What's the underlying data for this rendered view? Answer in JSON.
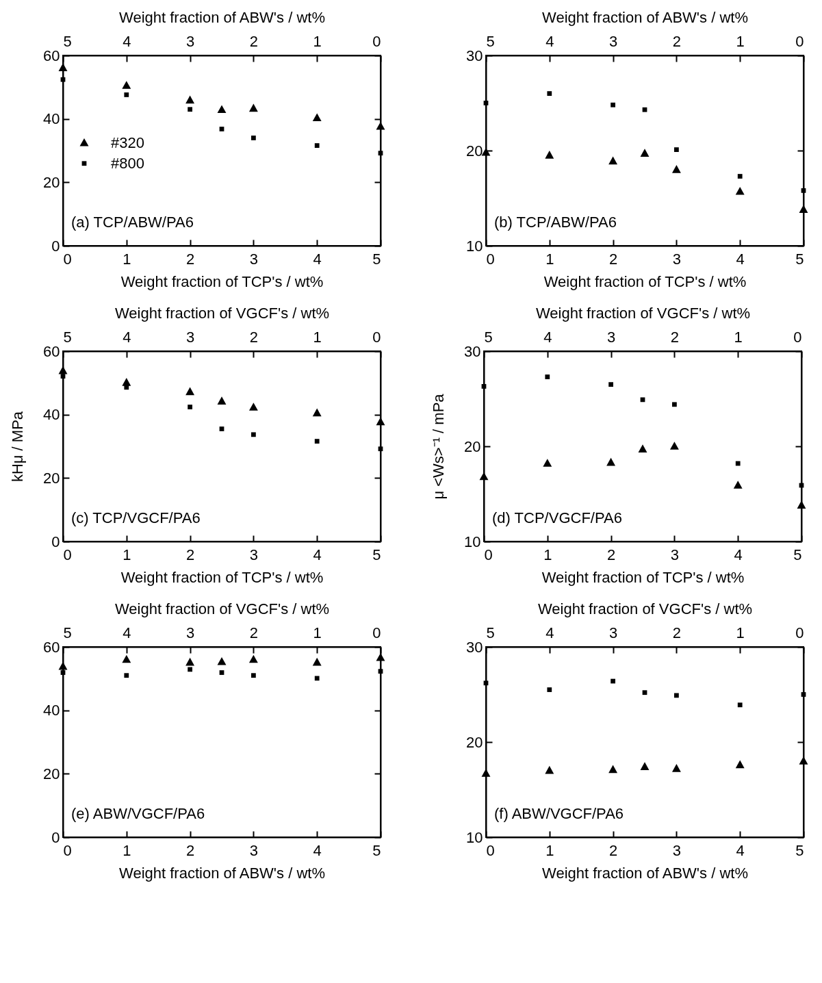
{
  "chart_data": [
    {
      "type": "scatter",
      "x": [
        0,
        1,
        2,
        2.5,
        3,
        4,
        5
      ],
      "xlim": [
        0,
        5
      ],
      "xticks": [
        0,
        1,
        2,
        3,
        4,
        5
      ],
      "x2lim": [
        5,
        0
      ],
      "x2ticks": [
        5,
        4,
        3,
        2,
        1,
        0
      ],
      "xlabel": "Weight fraction of TCP's / wt%",
      "x2label": "Weight fraction of ABW's / wt%",
      "ylim": [
        0,
        60
      ],
      "yticks": [
        0,
        20,
        40,
        60
      ],
      "legend": "left",
      "annotations": [
        "(a) TCP/ABW/PA6"
      ],
      "series": [
        {
          "name": "#320",
          "color": "#000000",
          "marker": "triangle",
          "values": [
            56.1,
            50.5,
            45.9,
            42.9,
            43.3,
            40.3,
            37.6
          ]
        },
        {
          "name": "#800",
          "color": "#000000",
          "marker": "square",
          "values": [
            52.4,
            47.6,
            43.0,
            36.8,
            34.0,
            31.6,
            29.2
          ]
        }
      ]
    },
    {
      "type": "scatter",
      "x": [
        0,
        1,
        2,
        2.5,
        3,
        4,
        5
      ],
      "xlim": [
        0,
        5
      ],
      "xticks": [
        0,
        1,
        2,
        3,
        4,
        5
      ],
      "x2lim": [
        5,
        0
      ],
      "x2ticks": [
        5,
        4,
        3,
        2,
        1,
        0
      ],
      "xlabel": "Weight fraction of TCP's / wt%",
      "x2label": "Weight fraction of ABW's / wt%",
      "ylim": [
        10,
        30
      ],
      "yticks": [
        10,
        20,
        30
      ],
      "annotations": [
        "(b) TCP/ABW/PA6"
      ],
      "series": [
        {
          "color": "#000000",
          "marker": "triangle",
          "values": [
            19.8,
            19.5,
            18.9,
            19.7,
            18.0,
            15.7,
            13.8
          ]
        },
        {
          "color": "#000000",
          "marker": "square",
          "values": [
            25.0,
            26.0,
            24.8,
            24.3,
            20.1,
            17.3,
            15.8
          ]
        }
      ]
    },
    {
      "type": "scatter",
      "x": [
        0,
        1,
        2,
        2.5,
        3,
        4,
        5
      ],
      "xlim": [
        0,
        5
      ],
      "xticks": [
        0,
        1,
        2,
        3,
        4,
        5
      ],
      "x2lim": [
        5,
        0
      ],
      "x2ticks": [
        5,
        4,
        3,
        2,
        1,
        0
      ],
      "xlabel": "Weight fraction of TCP's / wt%",
      "x2label": "Weight fraction of VGCF's / wt%",
      "ylabel": "kHμ / MPa",
      "ylim": [
        0,
        60
      ],
      "yticks": [
        0,
        20,
        40,
        60
      ],
      "annotations": [
        "(c) TCP/VGCF/PA6"
      ],
      "series": [
        {
          "color": "#000000",
          "marker": "triangle",
          "values": [
            53.8,
            50.1,
            47.2,
            44.2,
            42.3,
            40.5,
            37.7
          ]
        },
        {
          "color": "#000000",
          "marker": "square",
          "values": [
            52.1,
            48.6,
            42.4,
            35.5,
            33.7,
            31.6,
            29.2
          ]
        }
      ]
    },
    {
      "type": "scatter",
      "x": [
        0,
        1,
        2,
        2.5,
        3,
        4,
        5
      ],
      "xlim": [
        0,
        5
      ],
      "xticks": [
        0,
        1,
        2,
        3,
        4,
        5
      ],
      "x2lim": [
        5,
        0
      ],
      "x2ticks": [
        5,
        4,
        3,
        2,
        1,
        0
      ],
      "xlabel": "Weight fraction of TCP's / wt%",
      "x2label": "Weight fraction of VGCF's / wt%",
      "ylabel": "μ <Ws>⁻¹ / mPa",
      "ylim": [
        10,
        30
      ],
      "yticks": [
        10,
        20,
        30
      ],
      "annotations": [
        "(d) TCP/VGCF/PA6"
      ],
      "series": [
        {
          "color": "#000000",
          "marker": "triangle",
          "values": [
            16.8,
            18.2,
            18.3,
            19.7,
            20.0,
            15.9,
            13.8
          ]
        },
        {
          "color": "#000000",
          "marker": "square",
          "values": [
            26.3,
            27.3,
            26.5,
            24.9,
            24.4,
            18.2,
            15.9
          ]
        }
      ]
    },
    {
      "type": "scatter",
      "x": [
        0,
        1,
        2,
        2.5,
        3,
        4,
        5
      ],
      "xlim": [
        0,
        5
      ],
      "xticks": [
        0,
        1,
        2,
        3,
        4,
        5
      ],
      "x2lim": [
        5,
        0
      ],
      "x2ticks": [
        5,
        4,
        3,
        2,
        1,
        0
      ],
      "xlabel": "Weight fraction of ABW's / wt%",
      "x2label": "Weight fraction of VGCF's / wt%",
      "ylim": [
        0,
        60
      ],
      "yticks": [
        0,
        20,
        40,
        60
      ],
      "annotations": [
        "(e) ABW/VGCF/PA6"
      ],
      "series": [
        {
          "color": "#000000",
          "marker": "triangle",
          "values": [
            53.8,
            56.0,
            55.1,
            55.3,
            56.0,
            55.1,
            56.6
          ]
        },
        {
          "color": "#000000",
          "marker": "square",
          "values": [
            51.9,
            51.0,
            52.9,
            51.9,
            51.0,
            50.1,
            52.3
          ]
        }
      ]
    },
    {
      "type": "scatter",
      "x": [
        0,
        1,
        2,
        2.5,
        3,
        4,
        5
      ],
      "xlim": [
        0,
        5
      ],
      "xticks": [
        0,
        1,
        2,
        3,
        4,
        5
      ],
      "x2lim": [
        5,
        0
      ],
      "x2ticks": [
        5,
        4,
        3,
        2,
        1,
        0
      ],
      "xlabel": "Weight fraction of ABW's / wt%",
      "x2label": "Weight fraction of VGCF's / wt%",
      "ylim": [
        10,
        30
      ],
      "yticks": [
        10,
        20,
        30
      ],
      "annotations": [
        "(f) ABW/VGCF/PA6"
      ],
      "series": [
        {
          "color": "#000000",
          "marker": "triangle",
          "values": [
            16.7,
            17.0,
            17.1,
            17.4,
            17.2,
            17.6,
            18.0
          ]
        },
        {
          "color": "#000000",
          "marker": "square",
          "values": [
            26.2,
            25.5,
            26.4,
            25.2,
            24.9,
            23.9,
            25.0
          ]
        }
      ]
    }
  ]
}
